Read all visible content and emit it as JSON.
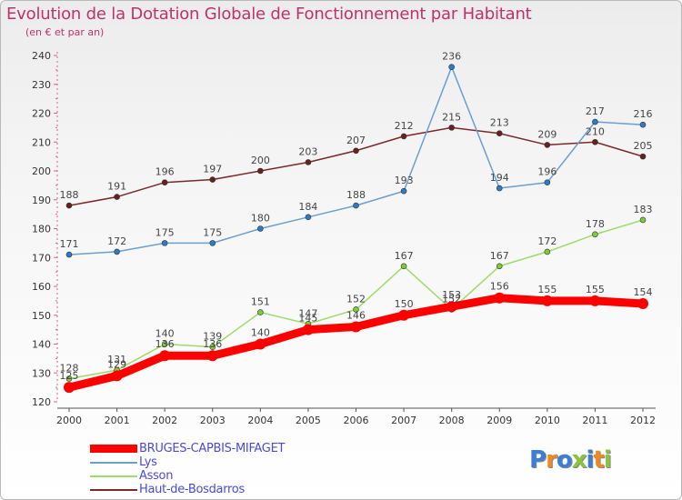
{
  "title": "Evolution de la Dotation Globale de Fonctionnement par Habitant",
  "subtitle": "(en € et par an)",
  "logo": {
    "text": "Proxiti",
    "letters": [
      {
        "ch": "P",
        "color": "#3a7fd5"
      },
      {
        "ch": "r",
        "color": "#ee8a1f"
      },
      {
        "ch": "o",
        "color": "#3a7fd5"
      },
      {
        "ch": "x",
        "color": "#8ac43f"
      },
      {
        "ch": "i",
        "color": "#3a7fd5"
      },
      {
        "ch": "t",
        "color": "#ee8a1f"
      },
      {
        "ch": "i",
        "color": "#8ac43f"
      }
    ]
  },
  "chart_data": {
    "type": "line",
    "title": "Evolution de la Dotation Globale de Fonctionnement par Habitant",
    "subtitle": "(en € et par an)",
    "x": [
      "2000",
      "2001",
      "2002",
      "2003",
      "2004",
      "2005",
      "2006",
      "2007",
      "2008",
      "2009",
      "2010",
      "2011",
      "2012"
    ],
    "ylim": [
      120,
      240
    ],
    "yticks": [
      120,
      130,
      140,
      150,
      160,
      170,
      180,
      190,
      200,
      210,
      220,
      230,
      240
    ],
    "grid": false,
    "legend_position": "bottom-left",
    "series": [
      {
        "name": "Haut-de-Bosdarros",
        "color": "#7a2a2a",
        "marker": "#6a1f1f",
        "values": [
          188,
          191,
          196,
          197,
          200,
          203,
          207,
          212,
          215,
          213,
          209,
          210,
          205
        ]
      },
      {
        "name": "Lys",
        "color": "#6a9fd0",
        "marker": "#2c7bc4",
        "values": [
          171,
          172,
          175,
          175,
          180,
          184,
          188,
          193,
          236,
          194,
          196,
          217,
          216
        ]
      },
      {
        "name": "Asson",
        "color": "#9ddb6a",
        "marker": "#7ccc3a",
        "values": [
          128,
          131,
          140,
          139,
          151,
          147,
          152,
          167,
          152,
          167,
          172,
          178,
          183
        ]
      },
      {
        "name": "BRUGES-CAPBIS-MIFAGET",
        "color": "#ff0000",
        "marker": "#ff0000",
        "values": [
          125,
          129,
          136,
          136,
          140,
          145,
          146,
          150,
          153,
          156,
          155,
          155,
          154
        ]
      }
    ]
  }
}
